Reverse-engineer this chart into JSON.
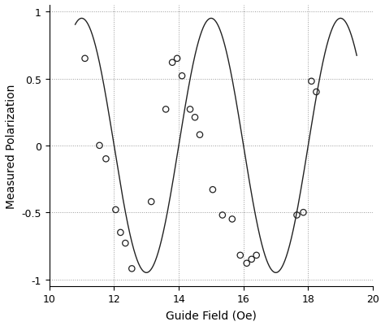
{
  "title": "",
  "xlabel": "Guide Field (Oe)",
  "ylabel": "Measured Polarization",
  "xlim": [
    10,
    20
  ],
  "ylim": [
    -1.05,
    1.05
  ],
  "xticks": [
    10,
    12,
    14,
    16,
    18,
    20
  ],
  "yticks": [
    -1,
    -0.5,
    0,
    0.5,
    1
  ],
  "scatter_x": [
    11.1,
    11.55,
    11.75,
    12.05,
    12.2,
    12.35,
    12.55,
    13.15,
    13.6,
    13.8,
    13.95,
    14.1,
    14.35,
    14.5,
    14.65,
    15.05,
    15.35,
    15.65,
    15.9,
    16.1,
    16.25,
    16.4,
    17.65,
    17.85,
    18.1,
    18.25
  ],
  "scatter_y": [
    0.65,
    0.0,
    -0.1,
    -0.48,
    -0.65,
    -0.73,
    -0.92,
    -0.42,
    0.27,
    0.62,
    0.65,
    0.52,
    0.27,
    0.21,
    0.08,
    -0.33,
    -0.52,
    -0.55,
    -0.82,
    -0.88,
    -0.85,
    -0.82,
    -0.52,
    -0.5,
    0.48,
    0.4
  ],
  "curve_x_start": 10.8,
  "curve_x_end": 19.5,
  "curve_amplitude": 0.95,
  "curve_period": 4.0,
  "curve_phase": 14.0,
  "background_color": "#ffffff",
  "scatter_color": "none",
  "scatter_edgecolor": "#222222",
  "line_color": "#222222",
  "grid_color": "#999999",
  "grid_style": "dotted",
  "scatter_size": 28,
  "scatter_lw": 0.9,
  "line_width": 1.0
}
